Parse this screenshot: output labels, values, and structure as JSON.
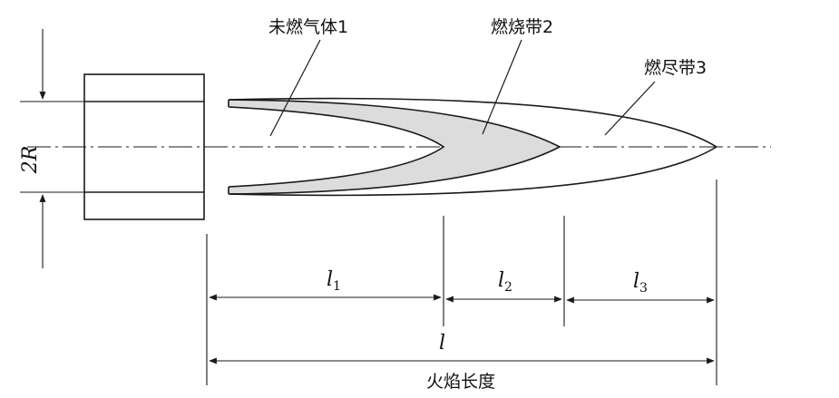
{
  "labels": {
    "zone1": "未燃气体1",
    "zone2": "燃烧带2",
    "zone3": "燃尽带3",
    "radius_dim": "2R",
    "l1_main": "l",
    "l1_sub": "1",
    "l2_main": "l",
    "l2_sub": "2",
    "l3_main": "l",
    "l3_sub": "3",
    "l_total": "l",
    "flame_length": "火焰长度"
  },
  "colors": {
    "line": "#1a1a1a",
    "burning_band_fill": "#dcdcdc",
    "background": "#ffffff"
  }
}
